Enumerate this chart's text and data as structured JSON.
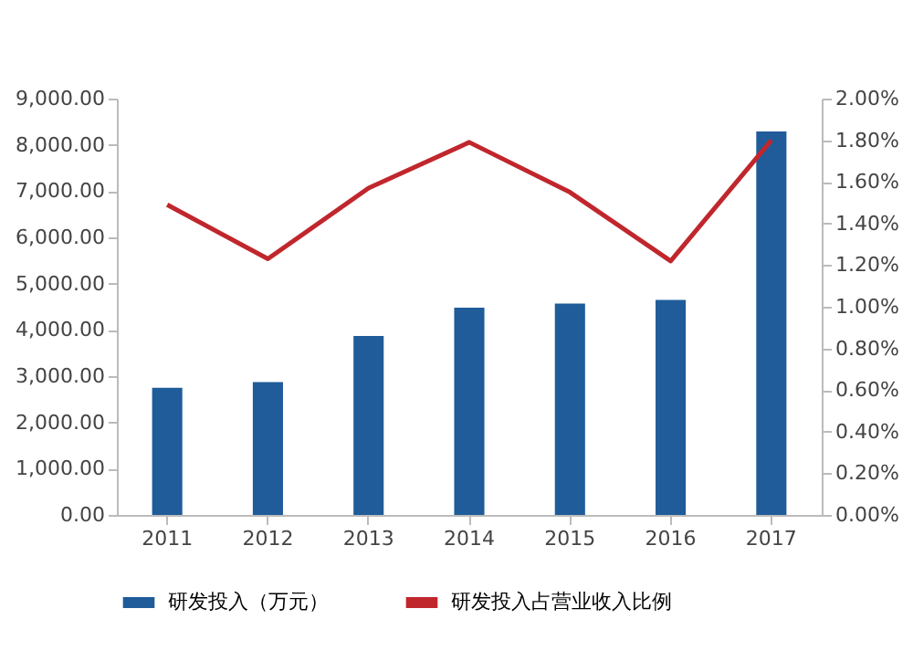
{
  "chart_data": {
    "type": "bar",
    "categories": [
      "2011",
      "2012",
      "2013",
      "2014",
      "2015",
      "2016",
      "2017"
    ],
    "series": [
      {
        "name": "研发投入（万元）",
        "color": "#1f5c99",
        "values": [
          2750,
          2870,
          3870,
          4480,
          4570,
          4650,
          8290
        ]
      },
      {
        "name": "研发投入占营业收入比例",
        "type": "line",
        "axis": "y2",
        "color": "#c0272d",
        "values": [
          1.49,
          1.23,
          1.57,
          1.79,
          1.55,
          1.22,
          1.8
        ]
      }
    ],
    "ylim": [
      0,
      9000
    ],
    "yticks": [
      {
        "value": 0,
        "label": "0.00"
      },
      {
        "value": 1000,
        "label": "1,000.00"
      },
      {
        "value": 2000,
        "label": "2,000.00"
      },
      {
        "value": 3000,
        "label": "3,000.00"
      },
      {
        "value": 4000,
        "label": "4,000.00"
      },
      {
        "value": 5000,
        "label": "5,000.00"
      },
      {
        "value": 6000,
        "label": "6,000.00"
      },
      {
        "value": 7000,
        "label": "7,000.00"
      },
      {
        "value": 8000,
        "label": "8,000.00"
      },
      {
        "value": 9000,
        "label": "9,000.00"
      }
    ],
    "y2lim": [
      0,
      2
    ],
    "y2ticks": [
      {
        "value": 0,
        "label": "0.00%"
      },
      {
        "value": 0.2,
        "label": "0.20%"
      },
      {
        "value": 0.4,
        "label": "0.40%"
      },
      {
        "value": 0.6,
        "label": "0.60%"
      },
      {
        "value": 0.8,
        "label": "0.80%"
      },
      {
        "value": 1,
        "label": "1.00%"
      },
      {
        "value": 1.2,
        "label": "1.20%"
      },
      {
        "value": 1.4,
        "label": "1.40%"
      },
      {
        "value": 1.6,
        "label": "1.60%"
      },
      {
        "value": 1.8,
        "label": "1.80%"
      },
      {
        "value": 2,
        "label": "2.00%"
      }
    ],
    "legend": "bottom",
    "grid": false
  }
}
